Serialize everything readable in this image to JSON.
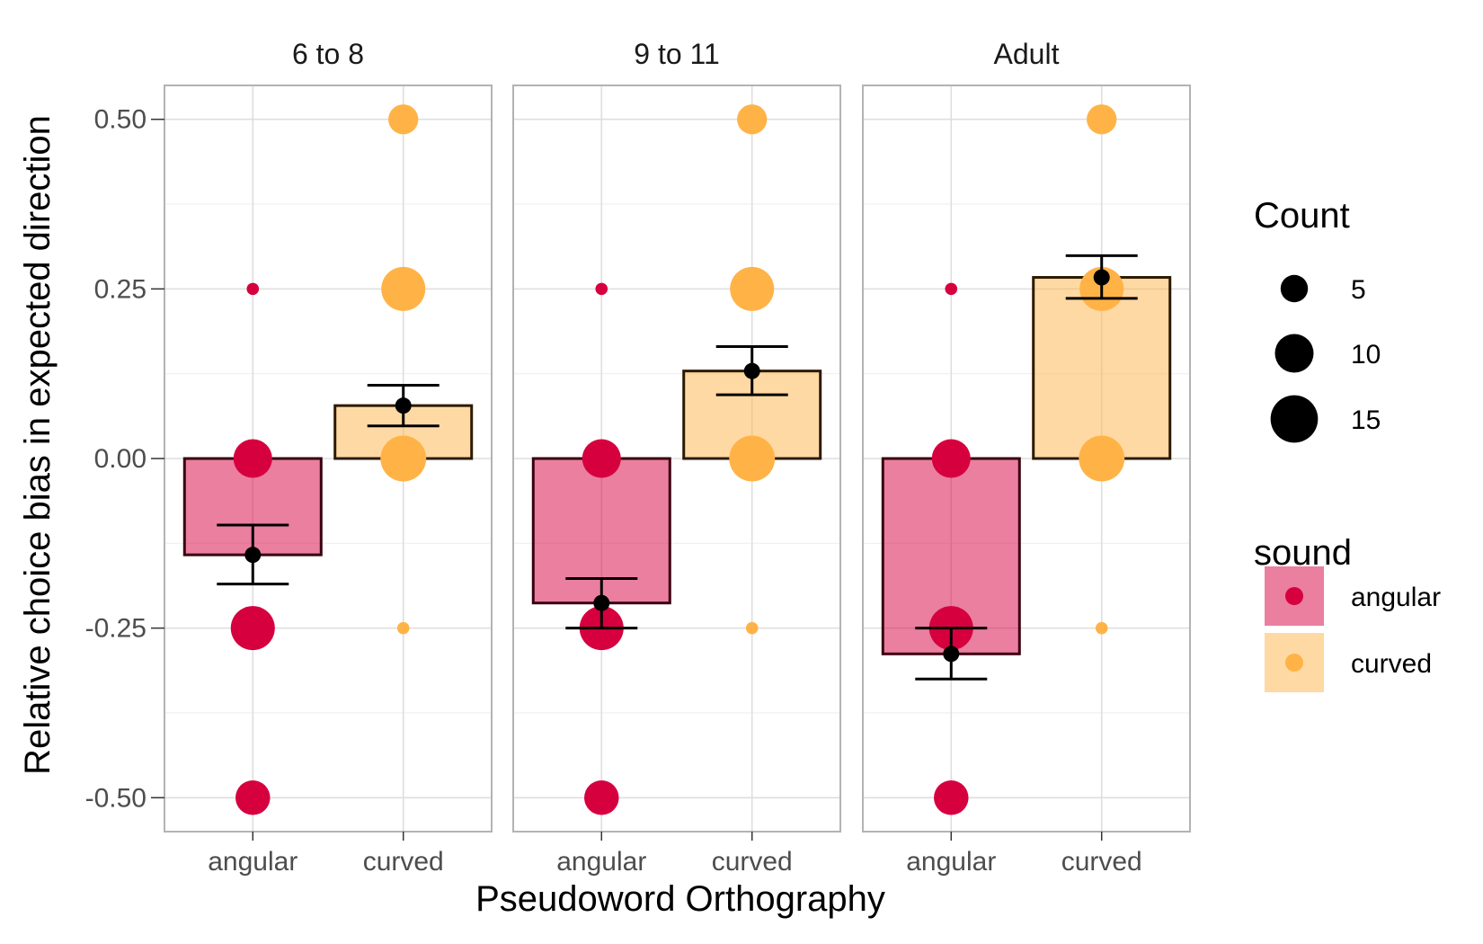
{
  "chart_data": {
    "type": "bar",
    "facets": [
      "6 to 8",
      "9 to 11",
      "Adult"
    ],
    "categories": [
      "angular",
      "curved"
    ],
    "xlabel": "Pseudoword Orthography",
    "ylabel": "Relative choice bias in expected direction",
    "ylim": [
      -0.55,
      0.55
    ],
    "yticks": [
      -0.5,
      -0.25,
      0.0,
      0.25,
      0.5
    ],
    "ytick_labels": [
      "-0.50",
      "-0.25",
      "0.00",
      "0.25",
      "0.50"
    ],
    "grid": true,
    "legend_position": "right",
    "colors": {
      "angular": "#d6003f",
      "curved": "#ffb347"
    },
    "bars": [
      {
        "facet": "6 to 8",
        "values": {
          "angular": -0.142,
          "curved": 0.078
        },
        "errors": {
          "angular": [
            -0.185,
            -0.098
          ],
          "curved": [
            0.048,
            0.108
          ]
        }
      },
      {
        "facet": "9 to 11",
        "values": {
          "angular": -0.213,
          "curved": 0.129
        },
        "errors": {
          "angular": [
            -0.25,
            -0.177
          ],
          "curved": [
            0.094,
            0.165
          ]
        }
      },
      {
        "facet": "Adult",
        "values": {
          "angular": -0.288,
          "curved": 0.267
        },
        "errors": {
          "angular": [
            -0.325,
            -0.25
          ],
          "curved": [
            0.236,
            0.299
          ]
        }
      }
    ],
    "points": [
      {
        "facet": "6 to 8",
        "sound": "angular",
        "y": 0.25,
        "count": 1
      },
      {
        "facet": "6 to 8",
        "sound": "angular",
        "y": 0.0,
        "count": 10
      },
      {
        "facet": "6 to 8",
        "sound": "angular",
        "y": -0.25,
        "count": 13
      },
      {
        "facet": "6 to 8",
        "sound": "angular",
        "y": -0.5,
        "count": 8
      },
      {
        "facet": "6 to 8",
        "sound": "curved",
        "y": 0.5,
        "count": 6
      },
      {
        "facet": "6 to 8",
        "sound": "curved",
        "y": 0.25,
        "count": 13
      },
      {
        "facet": "6 to 8",
        "sound": "curved",
        "y": 0.0,
        "count": 14
      },
      {
        "facet": "6 to 8",
        "sound": "curved",
        "y": -0.25,
        "count": 1
      },
      {
        "facet": "9 to 11",
        "sound": "angular",
        "y": 0.25,
        "count": 1
      },
      {
        "facet": "9 to 11",
        "sound": "angular",
        "y": 0.0,
        "count": 10
      },
      {
        "facet": "9 to 11",
        "sound": "angular",
        "y": -0.25,
        "count": 13
      },
      {
        "facet": "9 to 11",
        "sound": "angular",
        "y": -0.5,
        "count": 8
      },
      {
        "facet": "9 to 11",
        "sound": "curved",
        "y": 0.5,
        "count": 6
      },
      {
        "facet": "9 to 11",
        "sound": "curved",
        "y": 0.25,
        "count": 13
      },
      {
        "facet": "9 to 11",
        "sound": "curved",
        "y": 0.0,
        "count": 14
      },
      {
        "facet": "9 to 11",
        "sound": "curved",
        "y": -0.25,
        "count": 1
      },
      {
        "facet": "Adult",
        "sound": "angular",
        "y": 0.25,
        "count": 1
      },
      {
        "facet": "Adult",
        "sound": "angular",
        "y": 0.0,
        "count": 10
      },
      {
        "facet": "Adult",
        "sound": "angular",
        "y": -0.25,
        "count": 13
      },
      {
        "facet": "Adult",
        "sound": "angular",
        "y": -0.5,
        "count": 8
      },
      {
        "facet": "Adult",
        "sound": "curved",
        "y": 0.5,
        "count": 6
      },
      {
        "facet": "Adult",
        "sound": "curved",
        "y": 0.25,
        "count": 13
      },
      {
        "facet": "Adult",
        "sound": "curved",
        "y": 0.0,
        "count": 14
      },
      {
        "facet": "Adult",
        "sound": "curved",
        "y": -0.25,
        "count": 1
      }
    ],
    "legend_size": {
      "title": "Count",
      "values": [
        5,
        10,
        15
      ]
    },
    "legend_color": {
      "title": "sound",
      "entries": [
        "angular",
        "curved"
      ]
    }
  }
}
